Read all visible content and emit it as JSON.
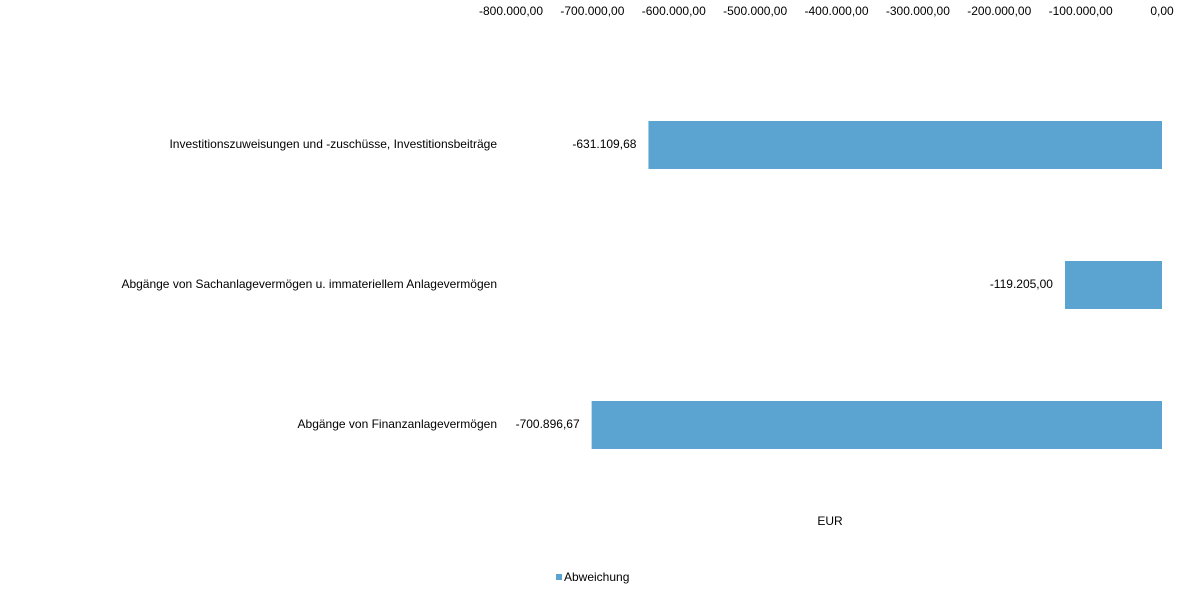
{
  "chart_data": {
    "type": "bar",
    "orientation": "horizontal",
    "categories": [
      "Investitionszuweisungen und -zuschüsse, Investitionsbeiträge",
      "Abgänge von Sachanlagevermögen u. immateriellem Anlagevermögen",
      "Abgänge von Finanzanlagevermögen"
    ],
    "series": [
      {
        "name": "Abweichung",
        "color": "#5ba3d0",
        "values": [
          -631109.68,
          -119205.0,
          -700896.67
        ],
        "value_labels": [
          "-631.109,68",
          "-119.205,00",
          "-700.896,67"
        ]
      }
    ],
    "x_label": "EUR",
    "xlim": [
      -800000,
      0
    ],
    "xticks": [
      {
        "value": -800000,
        "label": "-800.000,00"
      },
      {
        "value": -700000,
        "label": "-700.000,00"
      },
      {
        "value": -600000,
        "label": "-600.000,00"
      },
      {
        "value": -500000,
        "label": "-500.000,00"
      },
      {
        "value": -400000,
        "label": "-400.000,00"
      },
      {
        "value": -300000,
        "label": "-300.000,00"
      },
      {
        "value": -200000,
        "label": "-200.000,00"
      },
      {
        "value": -100000,
        "label": "-100.000,00"
      },
      {
        "value": 0,
        "label": "0,00"
      }
    ],
    "grid": false,
    "legend": "bottom"
  }
}
